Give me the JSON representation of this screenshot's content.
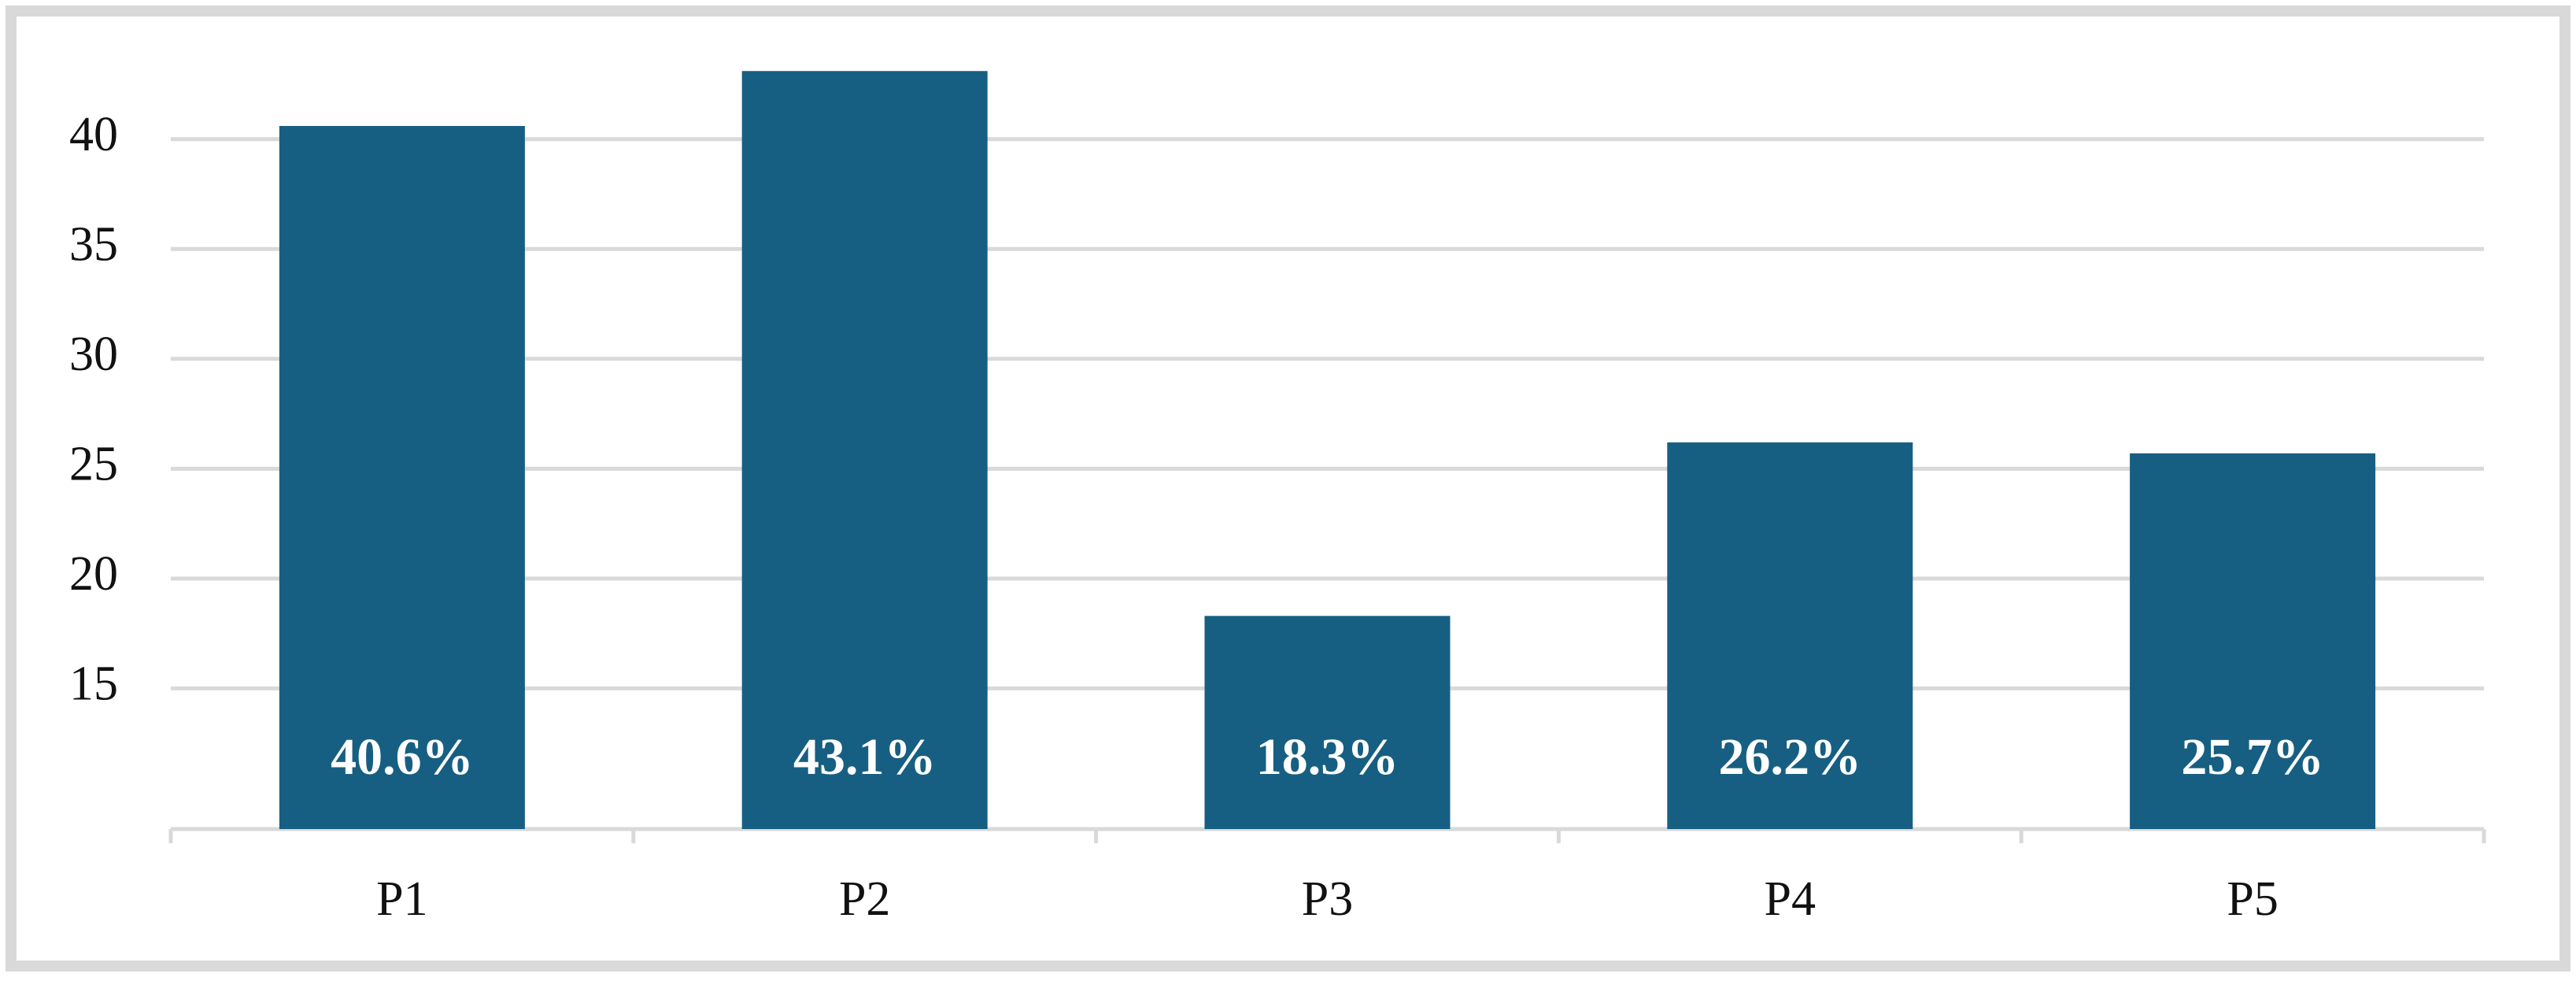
{
  "chart_data": {
    "type": "bar",
    "categories": [
      "P1",
      "P2",
      "P3",
      "P4",
      "P5"
    ],
    "values": [
      40.6,
      43.1,
      18.3,
      26.2,
      25.7
    ],
    "value_labels": [
      "40.6%",
      "43.1%",
      "18.3%",
      "26.2%",
      "25.7%"
    ],
    "color": "#175f82",
    "ylim": [
      8.6,
      44.9
    ],
    "yticks": [
      15,
      20,
      25,
      30,
      35,
      40
    ],
    "grid": true
  }
}
